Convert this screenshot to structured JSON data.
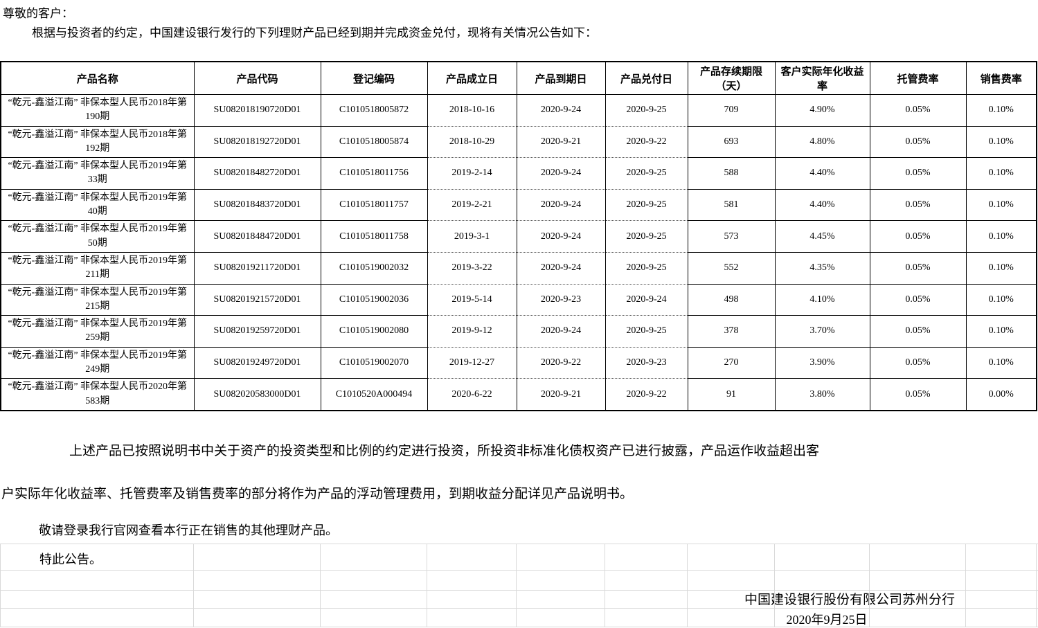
{
  "colors": {
    "text": "#000000",
    "table_border": "#000000",
    "gridline": "#d9d9d9"
  },
  "page": {
    "greeting": "尊敬的客户：",
    "intro": "根据与投资者的约定，中国建设银行发行的下列理财产品已经到期并完成资金兑付，现将有关情况公告如下：",
    "note1_line1": "上述产品已按照说明书中关于资产的投资类型和比例的约定进行投资，所投资非标准化债权资产已进行披露，产品运作收益超出客",
    "note1_line2": "户实际年化收益率、托管费率及销售费率的部分将作为产品的浮动管理费用，到期收益分配详见产品说明书。",
    "note2": "敬请登录我行官网查看本行正在销售的其他理财产品。",
    "note3": "特此公告。",
    "signature": "中国建设银行股份有限公司苏州分行",
    "sign_date": "2020年9月25日"
  },
  "table": {
    "headers": [
      "产品名称",
      "产品代码",
      "登记编码",
      "产品成立日",
      "产品到期日",
      "产品兑付日",
      "产品存续期限（天）",
      "客户实际年化收益率",
      "托管费率",
      "销售费率"
    ],
    "rows": [
      [
        "“乾元-鑫溢江南” 非保本型人民币2018年第190期",
        "SU082018190720D01",
        "C1010518005872",
        "2018-10-16",
        "2020-9-24",
        "2020-9-25",
        "709",
        "4.90%",
        "0.05%",
        "0.10%"
      ],
      [
        "“乾元-鑫溢江南” 非保本型人民币2018年第192期",
        "SU082018192720D01",
        "C1010518005874",
        "2018-10-29",
        "2020-9-21",
        "2020-9-22",
        "693",
        "4.80%",
        "0.05%",
        "0.10%"
      ],
      [
        "“乾元-鑫溢江南” 非保本型人民币2019年第33期",
        "SU082018482720D01",
        "C1010518011756",
        "2019-2-14",
        "2020-9-24",
        "2020-9-25",
        "588",
        "4.40%",
        "0.05%",
        "0.10%"
      ],
      [
        "“乾元-鑫溢江南” 非保本型人民币2019年第40期",
        "SU082018483720D01",
        "C1010518011757",
        "2019-2-21",
        "2020-9-24",
        "2020-9-25",
        "581",
        "4.40%",
        "0.05%",
        "0.10%"
      ],
      [
        "“乾元-鑫溢江南” 非保本型人民币2019年第50期",
        "SU082018484720D01",
        "C1010518011758",
        "2019-3-1",
        "2020-9-24",
        "2020-9-25",
        "573",
        "4.45%",
        "0.05%",
        "0.10%"
      ],
      [
        "“乾元-鑫溢江南” 非保本型人民币2019年第211期",
        "SU082019211720D01",
        "C1010519002032",
        "2019-3-22",
        "2020-9-24",
        "2020-9-25",
        "552",
        "4.35%",
        "0.05%",
        "0.10%"
      ],
      [
        "“乾元-鑫溢江南” 非保本型人民币2019年第215期",
        "SU082019215720D01",
        "C1010519002036",
        "2019-5-14",
        "2020-9-23",
        "2020-9-24",
        "498",
        "4.10%",
        "0.05%",
        "0.10%"
      ],
      [
        "“乾元-鑫溢江南” 非保本型人民币2019年第259期",
        "SU082019259720D01",
        "C1010519002080",
        "2019-9-12",
        "2020-9-24",
        "2020-9-25",
        "378",
        "3.70%",
        "0.05%",
        "0.10%"
      ],
      [
        "“乾元-鑫溢江南” 非保本型人民币2019年第249期",
        "SU082019249720D01",
        "C1010519002070",
        "2019-12-27",
        "2020-9-22",
        "2020-9-23",
        "270",
        "3.90%",
        "0.05%",
        "0.10%"
      ],
      [
        "“乾元-鑫溢江南” 非保本型人民币2020年第583期",
        "SU082020583000D01",
        "C1010520A000494",
        "2020-6-22",
        "2020-9-21",
        "2020-9-22",
        "91",
        "3.80%",
        "0.05%",
        "0.00%"
      ]
    ]
  }
}
